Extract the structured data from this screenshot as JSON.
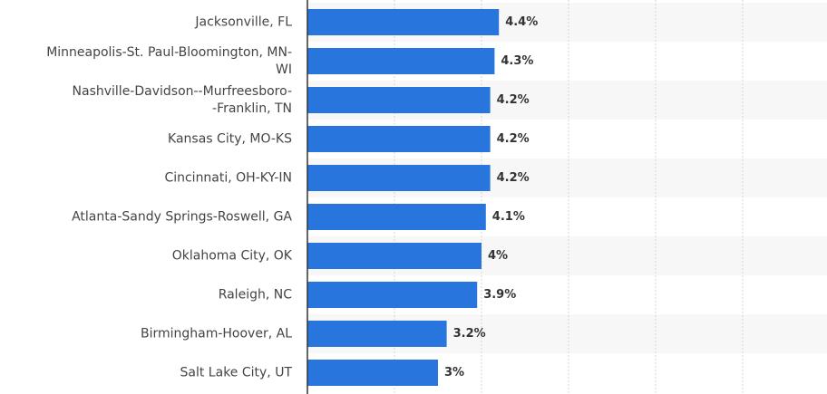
{
  "chart_data": {
    "type": "bar",
    "orientation": "horizontal",
    "categories": [
      [
        "Jacksonville, FL"
      ],
      [
        "Minneapolis-St. Paul-Bloomington, MN-",
        "WI"
      ],
      [
        "Nashville-Davidson--Murfreesboro-",
        "-Franklin, TN"
      ],
      [
        "Kansas City, MO-KS"
      ],
      [
        "Cincinnati, OH-KY-IN"
      ],
      [
        "Atlanta-Sandy Springs-Roswell, GA"
      ],
      [
        "Oklahoma City, OK"
      ],
      [
        "Raleigh, NC"
      ],
      [
        "Birmingham-Hoover, AL"
      ],
      [
        "Salt Lake City, UT"
      ]
    ],
    "values": [
      4.4,
      4.3,
      4.2,
      4.2,
      4.2,
      4.1,
      4.0,
      3.9,
      3.2,
      3.0
    ],
    "value_labels": [
      "4.4%",
      "4.3%",
      "4.2%",
      "4.2%",
      "4.2%",
      "4.1%",
      "4%",
      "3.9%",
      "3.2%",
      "3%"
    ],
    "xlim": [
      0,
      12
    ],
    "grid": true,
    "bar_color": "#2876dd",
    "band_color": "#f7f7f7"
  }
}
